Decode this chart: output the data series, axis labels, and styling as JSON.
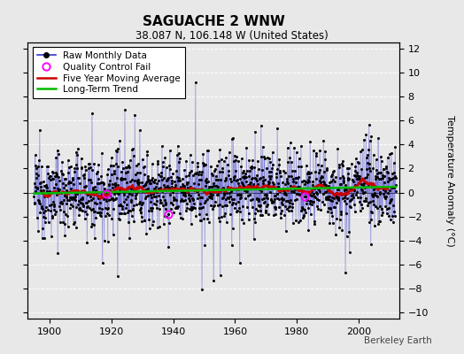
{
  "title": "SAGUACHE 2 WNW",
  "subtitle": "38.087 N, 106.148 W (United States)",
  "ylabel": "Temperature Anomaly (°C)",
  "ylim": [
    -10.5,
    12.5
  ],
  "yticks": [
    -10,
    -8,
    -6,
    -4,
    -2,
    0,
    2,
    4,
    6,
    8,
    10,
    12
  ],
  "xlim": [
    1893,
    2013
  ],
  "xticks": [
    1900,
    1920,
    1940,
    1960,
    1980,
    2000
  ],
  "x_start": 1895.0,
  "x_end": 2012.0,
  "n_months": 1404,
  "raw_color": "#3333cc",
  "moving_avg_color": "#cc0000",
  "trend_color": "#00bb00",
  "qc_color": "#ff00ff",
  "background_color": "#e8e8e8",
  "plot_bg_color": "#e8e8e8",
  "grid_color": "#ffffff",
  "seed": 12345,
  "noise_scale": 1.6,
  "seasonal_amp": 1.2,
  "n_extremes": 20,
  "n_qc": 3
}
